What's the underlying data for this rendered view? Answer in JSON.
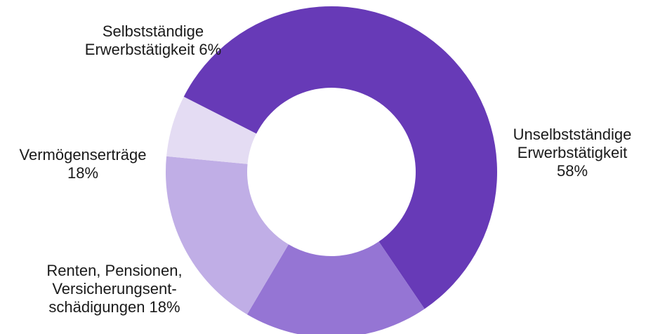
{
  "chart_data": {
    "type": "pie",
    "donut": true,
    "title": "",
    "slices": [
      {
        "name": "Unselbstständige Erwerbstätigkeit",
        "value": 58,
        "label_lines": [
          "Unselbstständige",
          "Erwerbstätigkeit",
          "58%"
        ],
        "color": "#673ab7"
      },
      {
        "name": "Renten, Pensionen, Versicherungsentschädigungen",
        "value": 18,
        "label_lines": [
          "Renten, Pensionen,",
          "Versicherungsent-",
          "schädigungen 18%"
        ],
        "color": "#9575d4"
      },
      {
        "name": "Vermögenserträge",
        "value": 18,
        "label_lines": [
          "Vermögenserträge",
          "18%"
        ],
        "color": "#c0aee6"
      },
      {
        "name": "Selbstständige Erwerbstätigkeit",
        "value": 6,
        "label_lines": [
          "Selbstständige",
          "Erwerbstätigkeit 6%"
        ],
        "color": "#e4dcf3"
      }
    ]
  }
}
